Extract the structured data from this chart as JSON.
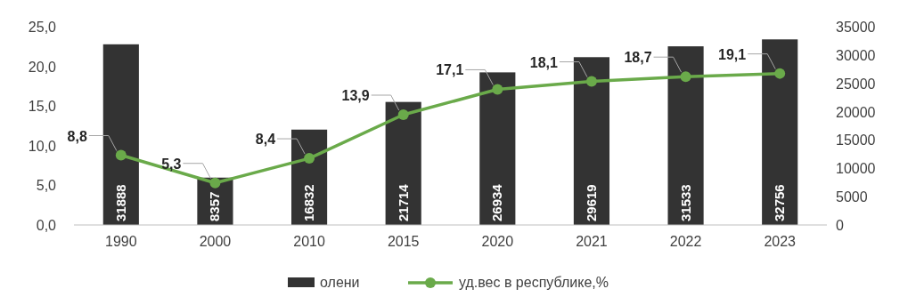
{
  "chart_data": {
    "type": "bar",
    "categories": [
      "1990",
      "2000",
      "2010",
      "2015",
      "2020",
      "2021",
      "2022",
      "2023"
    ],
    "series": [
      {
        "name": "олени",
        "axis": "y2",
        "color": "#333333",
        "values": [
          31888,
          8357,
          16832,
          21714,
          26934,
          29619,
          31533,
          32756
        ],
        "value_labels": [
          "31888",
          "8357",
          "16832",
          "21714",
          "26934",
          "29619",
          "31533",
          "32756"
        ]
      },
      {
        "name": "уд.вес в республике,%",
        "type": "line",
        "axis": "y",
        "color": "#6aaa4a",
        "marker": "circle",
        "values": [
          8.8,
          5.3,
          8.4,
          13.9,
          17.1,
          18.1,
          18.7,
          19.1
        ],
        "value_labels": [
          "8,8",
          "5,3",
          "8,4",
          "13,9",
          "17,1",
          "18,1",
          "18,7",
          "19,1"
        ]
      }
    ],
    "ylim": [
      0,
      25
    ],
    "yticks": [
      {
        "value": 0,
        "label": "0,0"
      },
      {
        "value": 5,
        "label": "5,0"
      },
      {
        "value": 10,
        "label": "10,0"
      },
      {
        "value": 15,
        "label": "15,0"
      },
      {
        "value": 20,
        "label": "20,0"
      },
      {
        "value": 25,
        "label": "25,0"
      }
    ],
    "y2lim": [
      0,
      35000
    ],
    "y2ticks": [
      0,
      5000,
      10000,
      15000,
      20000,
      25000,
      30000,
      35000
    ],
    "legend": "bottom"
  }
}
